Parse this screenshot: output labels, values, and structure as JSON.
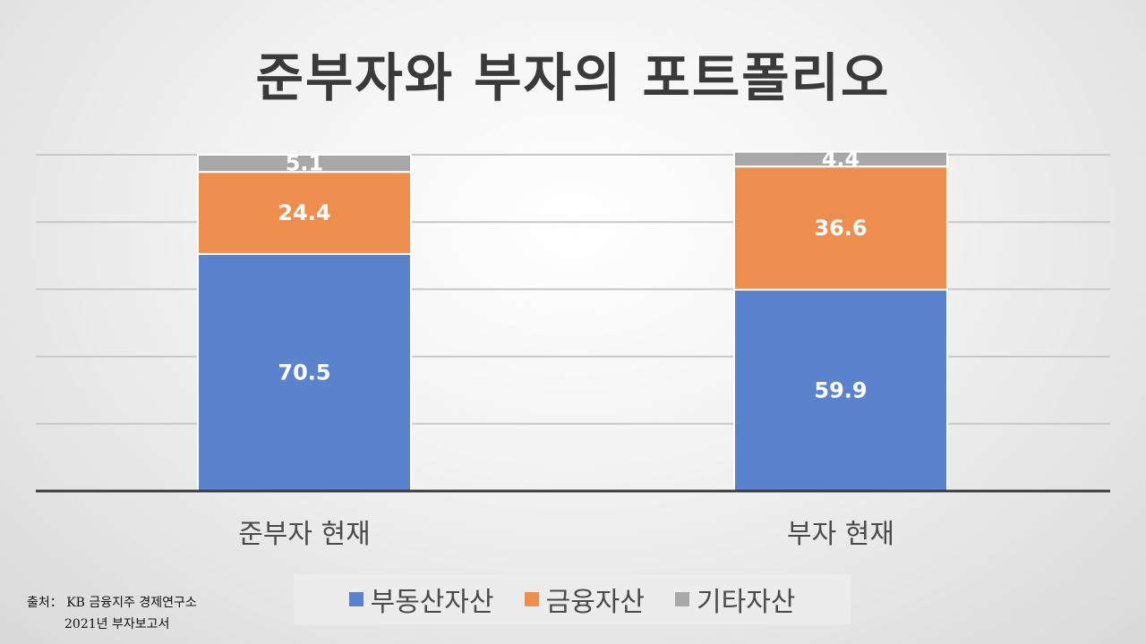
{
  "chart_data": {
    "type": "bar",
    "stacked": true,
    "title": "준부자와 부자의 포트폴리오",
    "categories": [
      "준부자 현재",
      "부자 현재"
    ],
    "series": [
      {
        "name": "부동산자산",
        "values": [
          70.5,
          59.9
        ],
        "color": "#5b82cc"
      },
      {
        "name": "금융자산",
        "values": [
          24.4,
          36.6
        ],
        "color": "#ed8d4e"
      },
      {
        "name": "기타자산",
        "values": [
          5.1,
          4.4
        ],
        "color": "#a8a8a8"
      }
    ],
    "ylim": [
      0,
      100
    ],
    "grid": true,
    "legend_position": "bottom"
  },
  "source": {
    "line1": "출처： KB 금융지주 경제연구소",
    "line2": "2021년 부자보고서"
  }
}
